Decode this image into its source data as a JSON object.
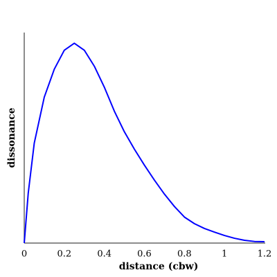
{
  "chart_data": {
    "type": "line",
    "x_label": "distance (cbw)",
    "y_label": "dissonance",
    "x": [
      0,
      0.02,
      0.05,
      0.1,
      0.15,
      0.2,
      0.25,
      0.3,
      0.35,
      0.4,
      0.45,
      0.5,
      0.55,
      0.6,
      0.65,
      0.7,
      0.75,
      0.8,
      0.85,
      0.9,
      0.95,
      1.0,
      1.05,
      1.1,
      1.15,
      1.2
    ],
    "series": [
      {
        "color": "#0000ff",
        "values": [
          0,
          0.25,
          0.5,
          0.73,
          0.87,
          0.965,
          1.0,
          0.965,
          0.885,
          0.78,
          0.66,
          0.557,
          0.47,
          0.39,
          0.315,
          0.245,
          0.183,
          0.13,
          0.097,
          0.073,
          0.055,
          0.038,
          0.024,
          0.014,
          0.008,
          0.007
        ]
      }
    ],
    "xlim": [
      0,
      1.2
    ],
    "ylim": [
      0,
      1.05
    ],
    "xticks": [
      0,
      0.2,
      0.4,
      0.6,
      0.8,
      1,
      1.2
    ]
  }
}
